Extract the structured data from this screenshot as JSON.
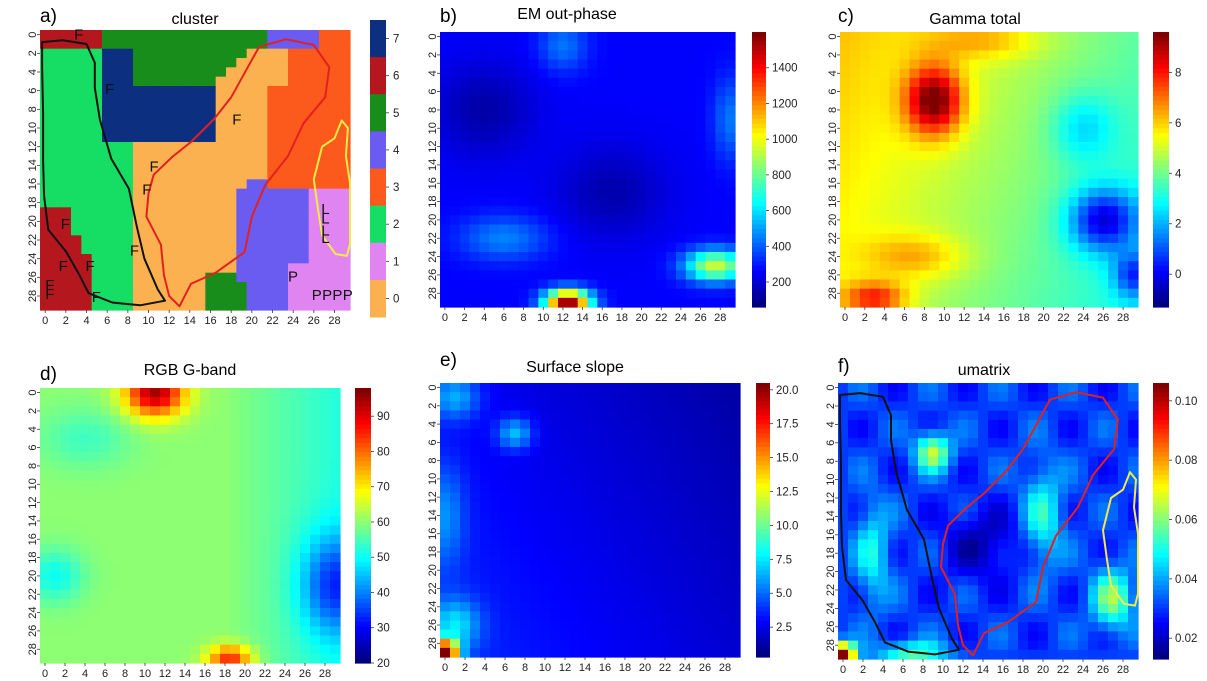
{
  "chart_data": [
    {
      "id": "a",
      "panel_label": "a)",
      "type": "heatmap",
      "title": "cluster",
      "grid_size": 30,
      "x_ticks": [
        "0",
        "2",
        "4",
        "6",
        "8",
        "10",
        "12",
        "14",
        "16",
        "18",
        "20",
        "22",
        "24",
        "26",
        "28"
      ],
      "y_ticks": [
        "0",
        "2",
        "4",
        "6",
        "8",
        "10",
        "12",
        "14",
        "16",
        "18",
        "20",
        "22",
        "24",
        "26",
        "28"
      ],
      "categorical": true,
      "colorbar": {
        "ticks": [
          "7",
          "6",
          "5",
          "4",
          "3",
          "2",
          "1",
          "0"
        ],
        "categories": [
          {
            "value": 0,
            "color": "#fbb150"
          },
          {
            "value": 1,
            "color": "#df84f0"
          },
          {
            "value": 2,
            "color": "#16dd63"
          },
          {
            "value": 3,
            "color": "#fc5a1c"
          },
          {
            "value": 4,
            "color": "#6a5cf0"
          },
          {
            "value": 5,
            "color": "#188d1c"
          },
          {
            "value": 6,
            "color": "#b4171e"
          },
          {
            "value": 7,
            "color": "#0c2f80"
          }
        ]
      },
      "cell_labels": [
        {
          "text": "F",
          "x": 3.3,
          "y": 0.5
        },
        {
          "text": "F",
          "x": 6.3,
          "y": 6.3
        },
        {
          "text": "F",
          "x": 18.6,
          "y": 9.6
        },
        {
          "text": "F",
          "x": 10.6,
          "y": 14.6
        },
        {
          "text": "F",
          "x": 9.9,
          "y": 17.1
        },
        {
          "text": "F",
          "x": 2.0,
          "y": 20.8
        },
        {
          "text": "F",
          "x": 8.7,
          "y": 23.6
        },
        {
          "text": "F",
          "x": 1.8,
          "y": 25.3
        },
        {
          "text": "F",
          "x": 4.4,
          "y": 25.3
        },
        {
          "text": "F",
          "x": 0.5,
          "y": 27.3
        },
        {
          "text": "F",
          "x": 0.5,
          "y": 28.3
        },
        {
          "text": "F",
          "x": 5.0,
          "y": 28.6
        },
        {
          "text": "P",
          "x": 24.0,
          "y": 26.4
        },
        {
          "text": "P",
          "x": 26.3,
          "y": 28.4
        },
        {
          "text": "P",
          "x": 27.3,
          "y": 28.4
        },
        {
          "text": "P",
          "x": 28.3,
          "y": 28.4
        },
        {
          "text": "P",
          "x": 29.3,
          "y": 28.4
        },
        {
          "text": "L",
          "x": 31.0,
          "y": 22.3
        },
        {
          "text": "L",
          "x": 32.3,
          "y": 21.5
        },
        {
          "text": "L",
          "x": 33.1,
          "y": 20.2
        },
        {
          "text": "L",
          "x": 33.4,
          "y": 19.2
        }
      ],
      "outlines": [
        "#111111",
        "#e32020",
        "#f2ea4a"
      ]
    },
    {
      "id": "b",
      "panel_label": "b)",
      "type": "heatmap",
      "title": "EM out-phase",
      "grid_size": 30,
      "x_ticks": [
        "0",
        "2",
        "4",
        "6",
        "8",
        "10",
        "12",
        "14",
        "16",
        "18",
        "20",
        "22",
        "24",
        "26",
        "28"
      ],
      "y_ticks": [
        "0",
        "2",
        "4",
        "6",
        "8",
        "10",
        "12",
        "14",
        "16",
        "18",
        "20",
        "22",
        "24",
        "26",
        "28"
      ],
      "colorbar": {
        "min": 60,
        "max": 1600,
        "ticks": [
          "1400",
          "1200",
          "1000",
          "800",
          "600",
          "400",
          "200"
        ],
        "tick_values": [
          1400,
          1200,
          1000,
          800,
          600,
          400,
          200
        ]
      },
      "hotspots": [
        {
          "x": 12.5,
          "y": 29,
          "value": 1550
        },
        {
          "x": 27.5,
          "y": 25,
          "value": 950
        },
        {
          "x": 12,
          "y": 1,
          "value": 420
        },
        {
          "x": 29,
          "y": 9,
          "value": 380
        }
      ]
    },
    {
      "id": "c",
      "panel_label": "c)",
      "type": "heatmap",
      "title": "Gamma total",
      "grid_size": 30,
      "x_ticks": [
        "0",
        "2",
        "4",
        "6",
        "8",
        "10",
        "12",
        "14",
        "16",
        "18",
        "20",
        "22",
        "24",
        "26",
        "28"
      ],
      "y_ticks": [
        "0",
        "2",
        "4",
        "6",
        "8",
        "10",
        "12",
        "14",
        "16",
        "18",
        "20",
        "22",
        "24",
        "26",
        "28"
      ],
      "colorbar": {
        "min": -1.3,
        "max": 9.6,
        "ticks": [
          "8",
          "6",
          "4",
          "2",
          "0"
        ],
        "tick_values": [
          8,
          6,
          4,
          2,
          0
        ]
      },
      "hotspots": [
        {
          "x": 9,
          "y": 7,
          "value": 9.4
        },
        {
          "x": 3,
          "y": 28.5,
          "value": 7.5
        },
        {
          "x": 14,
          "y": 0.5,
          "value": 6.5
        },
        {
          "x": 26,
          "y": 20,
          "value": 0.5
        },
        {
          "x": 29,
          "y": 26,
          "value": -1.2
        }
      ]
    },
    {
      "id": "d",
      "panel_label": "d)",
      "type": "heatmap",
      "title": "RGB G-band",
      "grid_size": 30,
      "x_ticks": [
        "0",
        "2",
        "4",
        "6",
        "8",
        "10",
        "12",
        "14",
        "16",
        "18",
        "20",
        "22",
        "24",
        "26",
        "28"
      ],
      "y_ticks": [
        "0",
        "2",
        "4",
        "6",
        "8",
        "10",
        "12",
        "14",
        "16",
        "18",
        "20",
        "22",
        "24",
        "26",
        "28"
      ],
      "colorbar": {
        "min": 20,
        "max": 98,
        "ticks": [
          "90",
          "80",
          "70",
          "60",
          "50",
          "40",
          "30",
          "20"
        ],
        "tick_values": [
          90,
          80,
          70,
          60,
          50,
          40,
          30,
          20
        ]
      },
      "hotspots": [
        {
          "x": 11,
          "y": 0,
          "value": 97
        },
        {
          "x": 18.5,
          "y": 29,
          "value": 85
        },
        {
          "x": 28.5,
          "y": 21,
          "value": 21
        },
        {
          "x": 1,
          "y": 20,
          "value": 45
        }
      ]
    },
    {
      "id": "e",
      "panel_label": "e)",
      "type": "heatmap",
      "title": "Surface slope",
      "grid_size": 30,
      "x_ticks": [
        "0",
        "2",
        "4",
        "6",
        "8",
        "10",
        "12",
        "14",
        "16",
        "18",
        "20",
        "22",
        "24",
        "26",
        "28"
      ],
      "y_ticks": [
        "0",
        "2",
        "4",
        "6",
        "8",
        "10",
        "12",
        "14",
        "16",
        "18",
        "20",
        "22",
        "24",
        "26",
        "28"
      ],
      "colorbar": {
        "min": 0.3,
        "max": 20.5,
        "ticks": [
          "20.0",
          "17.5",
          "15.0",
          "12.5",
          "10.0",
          "7.5",
          "5.0",
          "2.5"
        ],
        "tick_values": [
          20,
          17.5,
          15,
          12.5,
          10,
          7.5,
          5,
          2.5
        ]
      },
      "hotspots": [
        {
          "x": 0,
          "y": 29,
          "value": 20.3
        },
        {
          "x": 7,
          "y": 5,
          "value": 7.5
        },
        {
          "x": 1,
          "y": 1,
          "value": 5.5
        }
      ]
    },
    {
      "id": "f",
      "panel_label": "f)",
      "type": "heatmap",
      "title": "umatrix",
      "grid_size": 30,
      "x_ticks": [
        "0",
        "2",
        "4",
        "6",
        "8",
        "10",
        "12",
        "14",
        "16",
        "18",
        "20",
        "22",
        "24",
        "26",
        "28"
      ],
      "y_ticks": [
        "0",
        "2",
        "4",
        "6",
        "8",
        "10",
        "12",
        "14",
        "16",
        "18",
        "20",
        "22",
        "24",
        "26",
        "28"
      ],
      "colorbar": {
        "min": 0.013,
        "max": 0.106,
        "ticks": [
          "0.10",
          "0.08",
          "0.06",
          "0.04",
          "0.02"
        ],
        "tick_values": [
          0.1,
          0.08,
          0.06,
          0.04,
          0.02
        ]
      },
      "hotspots": [
        {
          "x": 0,
          "y": 29,
          "value": 0.105
        },
        {
          "x": 9,
          "y": 7,
          "value": 0.07
        },
        {
          "x": 27,
          "y": 24,
          "value": 0.06
        },
        {
          "x": 7,
          "y": 29,
          "value": 0.065
        }
      ],
      "outlines": [
        "#111111",
        "#e32020",
        "#f2ea4a"
      ]
    }
  ]
}
